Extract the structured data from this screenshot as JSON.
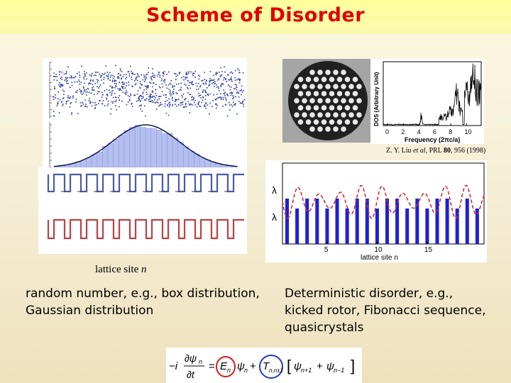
{
  "title": "Scheme of Disorder",
  "dos_plot": {
    "ylabel": "DOS (Arbitrary Unit)",
    "xlabel": "Frequency (2πc/a)",
    "xticks": [
      "0",
      "2",
      "4",
      "6",
      "8",
      "10"
    ]
  },
  "citation": {
    "authors": "Z. Y. Liu ",
    "etal": "et al",
    "journal": ", PRL ",
    "volume": "80",
    "rest": ", 956 (1998)"
  },
  "lattice_plot": {
    "ylabel_top": "λ",
    "ylabel_bottom": "λ",
    "xlabel": "lattice site n",
    "xticks": [
      "5",
      "10",
      "15"
    ]
  },
  "lattice_caption": {
    "text": "lattice site ",
    "var": "n"
  },
  "left_text": {
    "line1": "random number, e.g., box distribution,",
    "line2": "Gaussian distribution"
  },
  "right_text": {
    "line1": "Deterministic disorder, e.g.,",
    "line2": "kicked rotor, Fibonacci sequence,",
    "line3": "quasicrystals"
  },
  "equation": {
    "lhs_prefix": "−i",
    "d_psi": "∂ψ",
    "psi_sub": "n",
    "dt": "∂t",
    "eq": "=",
    "E": "E",
    "E_sub": "n",
    "psi_term": "ψ",
    "psi_term_sub": "n",
    "plus": "+",
    "T": "T",
    "T_sub": "n,n±1",
    "bracket_open": "[",
    "psi_plus": "ψ",
    "psi_plus_sub": "n+1",
    "plus2": "+",
    "psi_minus": "ψ",
    "psi_minus_sub": "n−1",
    "bracket_close": "]"
  },
  "colors": {
    "title": "#e00000",
    "scatter": "#2a3a9a",
    "histogram_fill": "#b4bef0",
    "gaussian_curve": "#0a0a4a",
    "step_blue": "#4a5aa8",
    "step_red": "#c04040",
    "bar_blue": "#1f1fd6",
    "dashed_red": "#d03030",
    "circle_red": "#d81e1e",
    "circle_blue": "#1e3cc8"
  }
}
